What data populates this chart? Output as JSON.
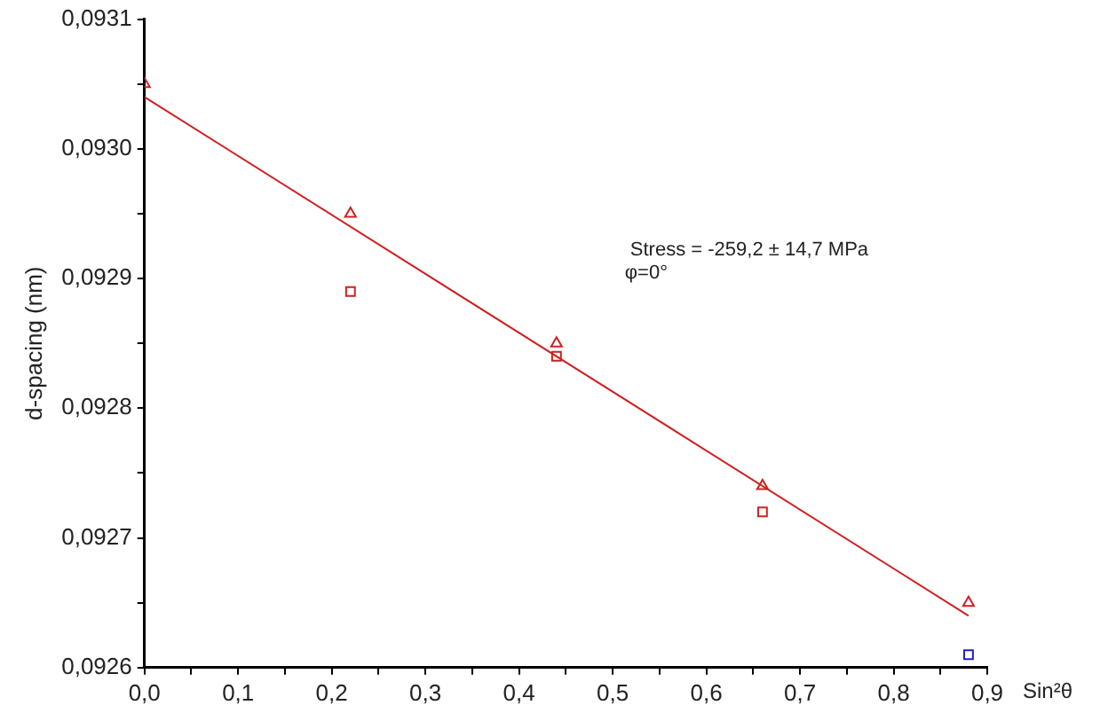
{
  "chart_data": {
    "type": "scatter",
    "xlabel": "Sin²θ",
    "ylabel": "d-spacing (nm)",
    "xlim": [
      0,
      0.9
    ],
    "ylim": [
      0.0926,
      0.0931
    ],
    "xticks": [
      {
        "value": 0,
        "label": "0,0"
      },
      {
        "value": 0.05,
        "label": null
      },
      {
        "value": 0.1,
        "label": "0,1"
      },
      {
        "value": 0.15,
        "label": null
      },
      {
        "value": 0.2,
        "label": "0,2"
      },
      {
        "value": 0.25,
        "label": null
      },
      {
        "value": 0.3,
        "label": "0,3"
      },
      {
        "value": 0.35,
        "label": null
      },
      {
        "value": 0.4,
        "label": "0,4"
      },
      {
        "value": 0.45,
        "label": null
      },
      {
        "value": 0.5,
        "label": "0,5"
      },
      {
        "value": 0.55,
        "label": null
      },
      {
        "value": 0.6,
        "label": "0,6"
      },
      {
        "value": 0.65,
        "label": null
      },
      {
        "value": 0.7,
        "label": "0,7"
      },
      {
        "value": 0.75,
        "label": null
      },
      {
        "value": 0.8,
        "label": "0,8"
      },
      {
        "value": 0.85,
        "label": null
      },
      {
        "value": 0.9,
        "label": "0,9"
      }
    ],
    "yticks": [
      {
        "value": 0.0926,
        "label": "0,0926"
      },
      {
        "value": 0.09265,
        "label": null
      },
      {
        "value": 0.0927,
        "label": "0,0927"
      },
      {
        "value": 0.09275,
        "label": null
      },
      {
        "value": 0.0928,
        "label": "0,0928"
      },
      {
        "value": 0.09285,
        "label": null
      },
      {
        "value": 0.0929,
        "label": "0,0929"
      },
      {
        "value": 0.09295,
        "label": null
      },
      {
        "value": 0.093,
        "label": "0,0930"
      },
      {
        "value": 0.09305,
        "label": null
      },
      {
        "value": 0.0931,
        "label": "0,0931"
      }
    ],
    "grid": false,
    "legend": false,
    "annotations": [
      "Stress = -259,2 ± 14,7 MPa",
      "φ=0°"
    ],
    "series": [
      {
        "type": "scatter",
        "marker": "triangle",
        "color": "#d02020",
        "x": [
          0,
          0.22,
          0.44,
          0.66,
          0.88
        ],
        "values": [
          0.09305,
          0.09295,
          0.09285,
          0.09274,
          0.09265
        ]
      },
      {
        "type": "scatter",
        "marker": "square",
        "color": "#d02020",
        "colors": [
          "#d02020",
          "#d02020",
          "#d02020",
          "#2020c0"
        ],
        "x": [
          0.22,
          0.44,
          0.66,
          0.88
        ],
        "values": [
          0.09289,
          0.09284,
          0.09272,
          0.09261
        ]
      },
      {
        "type": "line",
        "marker": "none",
        "line_style": "solid",
        "color": "#d02020",
        "x": [
          0,
          0.88
        ],
        "values": [
          0.09304,
          0.09264
        ]
      }
    ]
  }
}
